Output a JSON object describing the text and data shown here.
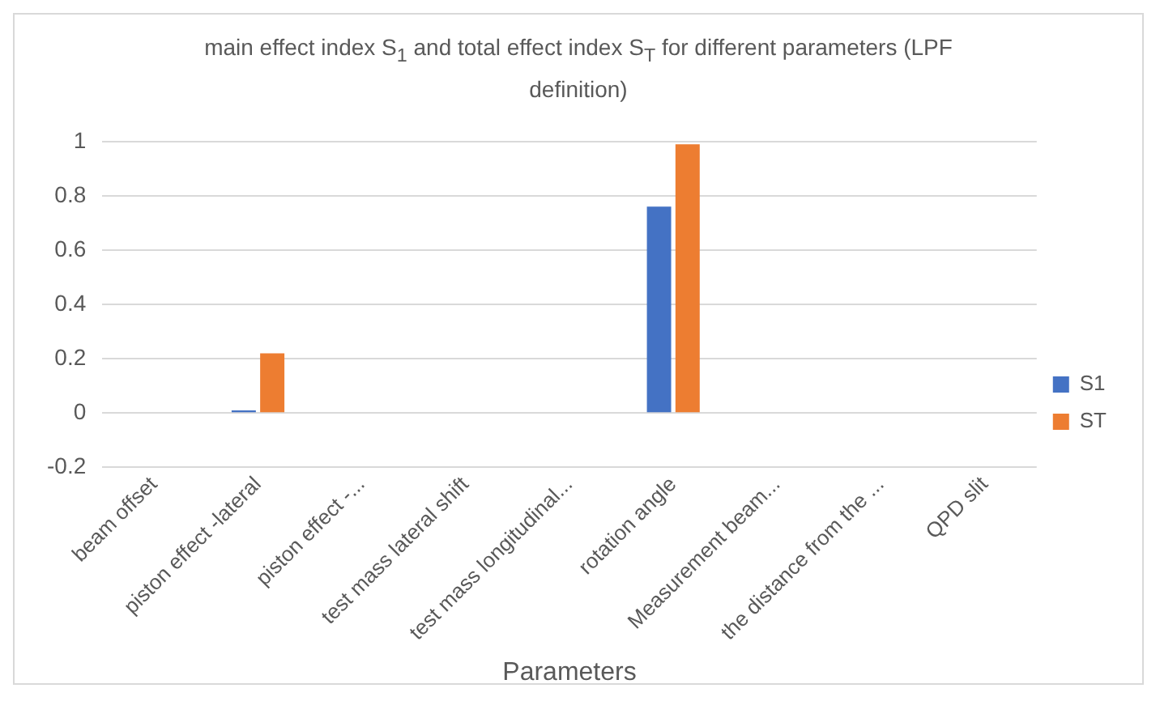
{
  "chart_data": {
    "type": "bar",
    "title": "main effect index S$_{1}$ and total effect index S$_{T}$ for different parameters (LPF definition)",
    "xlabel": "Parameters",
    "categories": [
      "beam offset",
      "piston effect -lateral",
      "piston effect -...",
      "test mass lateral shift",
      "test mass longitudinal...",
      "rotation angle",
      "Measurement beam...",
      "the distance from the ...",
      "QPD slit"
    ],
    "series": [
      {
        "name": "S1",
        "color": "#4472c4",
        "values": [
          0,
          0.01,
          0,
          0,
          0,
          0.76,
          0,
          0,
          0
        ]
      },
      {
        "name": "ST",
        "color": "#ed7d31",
        "values": [
          0,
          0.22,
          0,
          0,
          0,
          0.99,
          0,
          0,
          0
        ]
      }
    ],
    "ylim": [
      -0.2,
      1
    ],
    "yticks": [
      -0.2,
      0,
      0.2,
      0.4,
      0.6,
      0.8,
      1
    ],
    "grid": "y",
    "legend": "right"
  }
}
